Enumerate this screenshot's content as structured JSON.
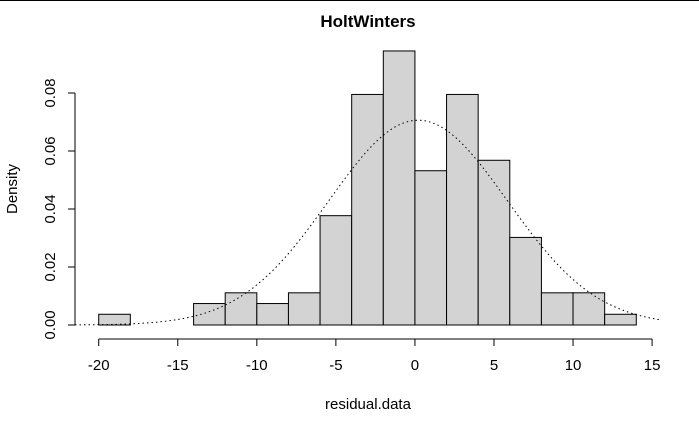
{
  "chart_data": {
    "type": "bar",
    "title": "HoltWinters",
    "xlabel": "residual.data",
    "ylabel": "Density",
    "xlim": [
      -21.5,
      15.5
    ],
    "ylim": [
      0,
      0.1
    ],
    "x_ticks": [
      -20,
      -15,
      -10,
      -5,
      0,
      5,
      10,
      15
    ],
    "y_ticks": [
      0.0,
      0.02,
      0.04,
      0.06,
      0.08
    ],
    "y_tick_labels": [
      "0.00",
      "0.02",
      "0.04",
      "0.06",
      "0.08"
    ],
    "bin_edges": [
      -20,
      -18,
      -16,
      -14,
      -12,
      -10,
      -8,
      -6,
      -4,
      -2,
      0,
      2,
      4,
      6,
      8,
      10,
      12,
      14
    ],
    "values": [
      0.0037,
      0,
      0,
      0.0074,
      0.0111,
      0.0074,
      0.0111,
      0.0377,
      0.0795,
      0.0945,
      0.0532,
      0.0795,
      0.0568,
      0.0302,
      0.0111,
      0.0111,
      0.0037
    ],
    "density_curve": {
      "mean": 0.2,
      "sd": 5.65
    },
    "bar_fill": "#d3d3d3",
    "bar_stroke": "#000000",
    "grid": false,
    "legend": "none"
  }
}
